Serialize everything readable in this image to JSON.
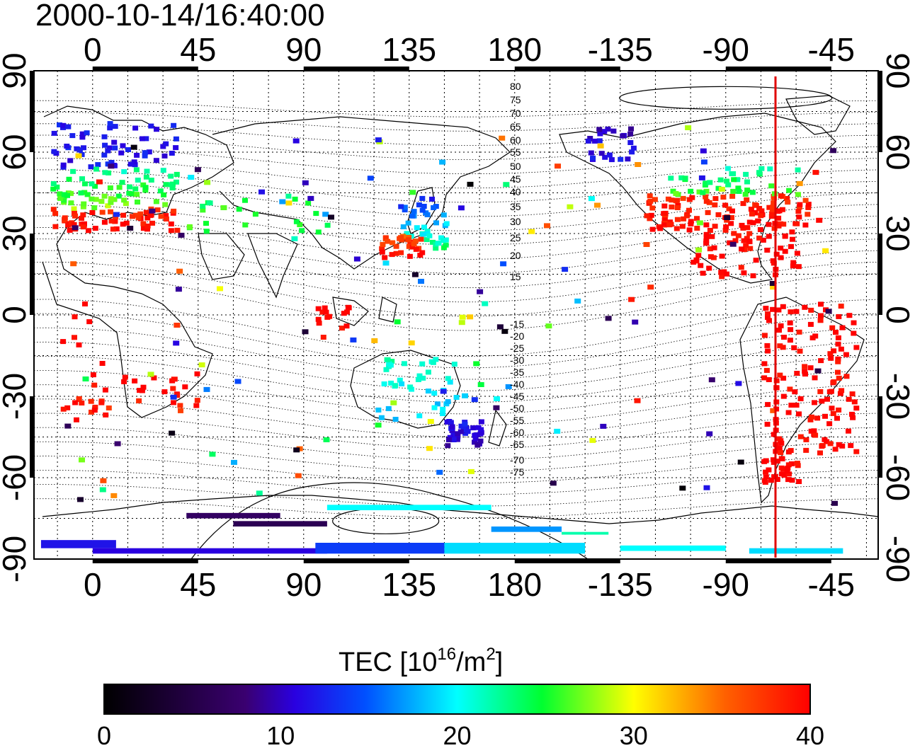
{
  "title": "2000-10-14/16:40:00",
  "map": {
    "lon_ticks_top": [
      "0",
      "45",
      "90",
      "135",
      "180",
      "-135",
      "-90",
      "-45"
    ],
    "lon_ticks_bottom": [
      "0",
      "45",
      "90",
      "135",
      "180",
      "-135",
      "-90",
      "-45"
    ],
    "lat_ticks_left": [
      "90",
      "60",
      "30",
      "0",
      "-30",
      "-60",
      "-90"
    ],
    "lat_ticks_right": [
      "90",
      "60",
      "30",
      "0",
      "-30",
      "-60",
      "-90"
    ],
    "lon_range": [
      -25,
      335
    ],
    "lat_range": [
      -90,
      90
    ],
    "grid": true,
    "marker_line_lon": -70,
    "marker_line_color": "#ff0000"
  },
  "magnetic_latitude_labels": [
    "80",
    "75",
    "70",
    "65",
    "60",
    "55",
    "50",
    "45",
    "40",
    "35",
    "30",
    "25",
    "20",
    "15",
    "-15",
    "-20",
    "-25",
    "-30",
    "-35",
    "-40",
    "-45",
    "-50",
    "-55",
    "-60",
    "-65",
    "-70",
    "-75"
  ],
  "colorbar": {
    "label_prefix": "TEC  [10",
    "label_exp": "16",
    "label_mid": "/m",
    "label_exp2": "2",
    "label_suffix": "]",
    "ticks": [
      "0",
      "10",
      "20",
      "30",
      "40"
    ],
    "range": [
      0,
      40
    ],
    "colors": [
      "#000000",
      "#3a0066",
      "#1a00ff",
      "#00ffff",
      "#00ff00",
      "#ffff00",
      "#ff0000"
    ]
  }
}
